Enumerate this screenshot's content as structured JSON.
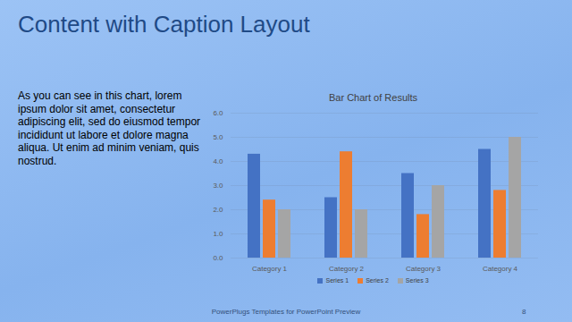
{
  "slide": {
    "title": "Content with Caption Layout",
    "caption": "As you can see in this chart, lorem ipsum dolor sit amet, consectetur adipiscing elit, sed do eiusmod tempor incididunt ut labore et dolore magna aliqua. Ut enim ad minim veniam, quis nostrud.",
    "footer": "PowerPlugs Templates for PowerPoint Preview",
    "page": "8"
  },
  "chart_data": {
    "type": "bar",
    "title": "Bar Chart of Results",
    "categories": [
      "Category 1",
      "Category 2",
      "Category 3",
      "Category 4"
    ],
    "series": [
      {
        "name": "Series 1",
        "color": "#4472c4",
        "values": [
          4.3,
          2.5,
          3.5,
          4.5
        ]
      },
      {
        "name": "Series 2",
        "color": "#ed7d31",
        "values": [
          2.4,
          4.4,
          1.8,
          2.8
        ]
      },
      {
        "name": "Series 3",
        "color": "#a5a5a5",
        "values": [
          2.0,
          2.0,
          3.0,
          5.0
        ]
      }
    ],
    "ylim": [
      0,
      6
    ],
    "yticks": [
      0,
      1,
      2,
      3,
      4,
      5,
      6
    ],
    "grid": true,
    "legend": "bottom"
  }
}
